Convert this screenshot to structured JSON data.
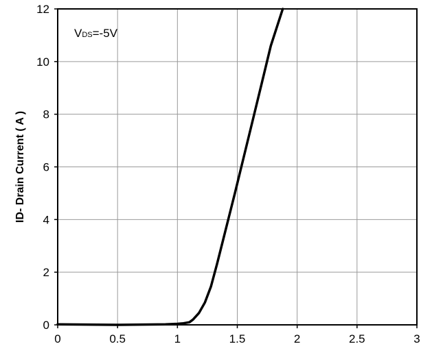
{
  "chart_data": {
    "type": "line",
    "title": "",
    "xlabel": "",
    "ylabel": "ID- Drain Current ( A )",
    "annotation": {
      "main": "V",
      "subscript": "DS",
      "suffix": "=-5V"
    },
    "xlim": [
      0,
      3
    ],
    "ylim": [
      0,
      12
    ],
    "x_ticks": [
      0,
      0.5,
      1,
      1.5,
      2,
      2.5,
      3
    ],
    "x_tick_labels": [
      "0",
      "0.5",
      "1",
      "1.5",
      "2",
      "2.5",
      "3"
    ],
    "y_ticks": [
      0,
      2,
      4,
      6,
      8,
      10,
      12
    ],
    "y_tick_labels": [
      "0",
      "2",
      "4",
      "6",
      "8",
      "10",
      "12"
    ],
    "grid": true,
    "line_color": "#000000",
    "grid_color": "#999999",
    "series": [
      {
        "x": [
          0,
          0.5,
          0.9,
          1.0,
          1.05,
          1.1,
          1.13,
          1.18,
          1.23,
          1.28,
          1.33,
          1.38,
          1.43,
          1.48,
          1.55,
          1.62,
          1.7,
          1.78,
          1.88
        ],
        "y": [
          0.02,
          0.0,
          0.02,
          0.04,
          0.06,
          0.1,
          0.2,
          0.45,
          0.85,
          1.45,
          2.3,
          3.2,
          4.1,
          5.0,
          6.3,
          7.6,
          9.1,
          10.6,
          12.0
        ]
      }
    ]
  }
}
